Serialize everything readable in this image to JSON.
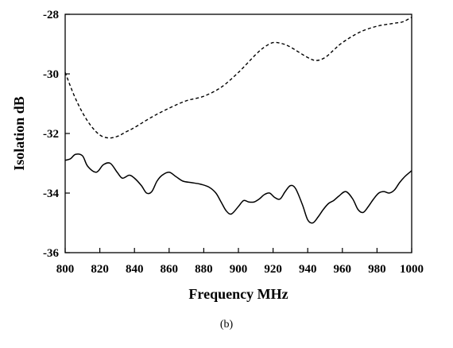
{
  "chart_data": {
    "type": "line",
    "caption": "(b)",
    "xlabel": "Frequency MHz",
    "ylabel": "Isolation dB",
    "xlim": [
      800,
      1000
    ],
    "ylim": [
      -36,
      -28
    ],
    "x_ticks": [
      800,
      820,
      840,
      860,
      880,
      900,
      920,
      940,
      960,
      980,
      1000
    ],
    "y_ticks": [
      -36,
      -34,
      -32,
      -30,
      -28
    ],
    "x_tick_labels": [
      "800",
      "820",
      "840",
      "860",
      "880",
      "900",
      "920",
      "940",
      "960",
      "980",
      "1000"
    ],
    "y_tick_labels": [
      "-36",
      "-34",
      "-32",
      "-30",
      "-28"
    ],
    "grid": false,
    "legend": "none",
    "series": [
      {
        "style": "dashed",
        "color": "#000000",
        "x": [
          800,
          805,
          810,
          815,
          820,
          825,
          830,
          835,
          840,
          850,
          860,
          870,
          880,
          890,
          900,
          910,
          915,
          920,
          925,
          930,
          940,
          945,
          950,
          955,
          960,
          970,
          980,
          990,
          995,
          1000
        ],
        "y": [
          -29.95,
          -30.7,
          -31.3,
          -31.75,
          -32.05,
          -32.15,
          -32.1,
          -31.95,
          -31.8,
          -31.45,
          -31.15,
          -30.9,
          -30.75,
          -30.45,
          -29.95,
          -29.35,
          -29.1,
          -28.95,
          -28.98,
          -29.1,
          -29.45,
          -29.55,
          -29.45,
          -29.2,
          -28.95,
          -28.6,
          -28.4,
          -28.3,
          -28.25,
          -28.1
        ]
      },
      {
        "style": "solid",
        "color": "#000000",
        "x": [
          800,
          803,
          806,
          810,
          813,
          818,
          822,
          826,
          830,
          833,
          837,
          840,
          844,
          847,
          850,
          853,
          856,
          860,
          864,
          868,
          873,
          878,
          883,
          887,
          890,
          893,
          896,
          900,
          903,
          906,
          909,
          912,
          915,
          918,
          921,
          924,
          927,
          930,
          933,
          937,
          940,
          943,
          946,
          949,
          952,
          955,
          958,
          962,
          966,
          969,
          972,
          975,
          978,
          981,
          984,
          987,
          990,
          993,
          996,
          1000
        ],
        "y": [
          -32.9,
          -32.85,
          -32.7,
          -32.75,
          -33.1,
          -33.3,
          -33.05,
          -33.0,
          -33.3,
          -33.5,
          -33.4,
          -33.5,
          -33.75,
          -34.0,
          -33.95,
          -33.6,
          -33.4,
          -33.3,
          -33.45,
          -33.6,
          -33.65,
          -33.7,
          -33.8,
          -34.0,
          -34.3,
          -34.6,
          -34.7,
          -34.45,
          -34.25,
          -34.3,
          -34.3,
          -34.2,
          -34.05,
          -34.0,
          -34.15,
          -34.2,
          -33.95,
          -33.75,
          -33.85,
          -34.4,
          -34.9,
          -35.0,
          -34.8,
          -34.55,
          -34.35,
          -34.25,
          -34.1,
          -33.95,
          -34.2,
          -34.55,
          -34.65,
          -34.45,
          -34.2,
          -34.0,
          -33.95,
          -34.0,
          -33.9,
          -33.65,
          -33.45,
          -33.25
        ]
      }
    ]
  }
}
